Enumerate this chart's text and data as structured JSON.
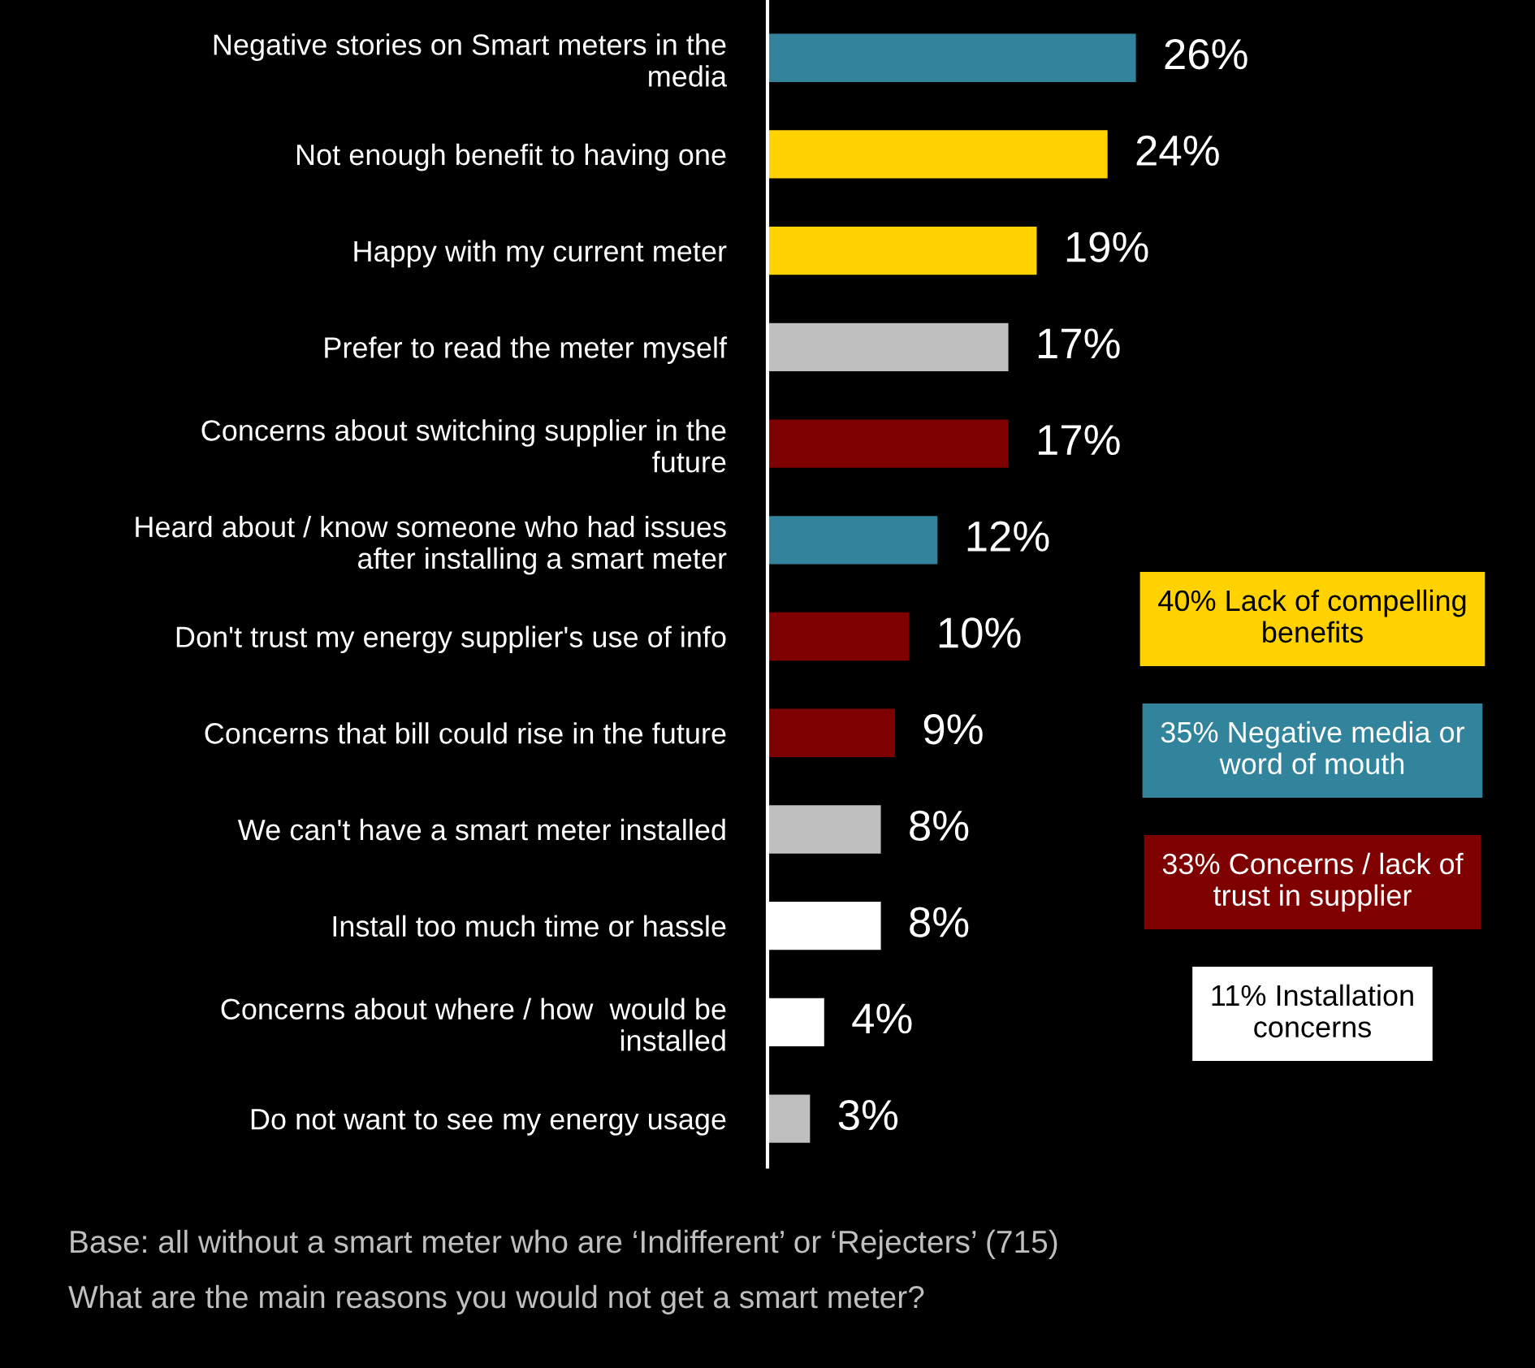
{
  "chart_data": {
    "type": "bar",
    "orientation": "horizontal",
    "legend": "right",
    "grid": false,
    "categories": [
      "Negative stories on Smart meters in the media",
      "Not enough benefit to having one",
      "Happy with my current meter",
      "Prefer to read the meter myself",
      "Concerns about switching supplier in the future",
      "Heard about / know someone who had issues after installing a smart meter",
      "Don't trust my energy supplier's use of info",
      "Concerns that bill could rise in the future",
      "We can't have a smart meter installed",
      "Install too much time or hassle",
      "Concerns about where / how  would be installed",
      "Do not want to see my energy usage"
    ],
    "series": [
      {
        "name": "40% Lack of compelling benefits",
        "color": "#ffd200",
        "values": [
          null,
          24,
          19,
          null,
          null,
          null,
          null,
          null,
          null,
          null,
          null,
          null
        ],
        "value_labels": [
          null,
          "24%",
          "19%",
          null,
          null,
          null,
          null,
          null,
          null,
          null,
          null,
          null
        ]
      },
      {
        "name": "35% Negative media or word of mouth",
        "color": "#31849b",
        "values": [
          26,
          null,
          null,
          null,
          null,
          12,
          null,
          null,
          null,
          null,
          null,
          null
        ],
        "value_labels": [
          "26%",
          null,
          null,
          null,
          null,
          "12%",
          null,
          null,
          null,
          null,
          null,
          null
        ]
      },
      {
        "name": "33% Concerns / lack of trust in supplier",
        "color": "#7f0000",
        "values": [
          null,
          null,
          null,
          null,
          17,
          null,
          10,
          9,
          null,
          null,
          null,
          null
        ],
        "value_labels": [
          null,
          null,
          null,
          null,
          "17%",
          null,
          "10%",
          "9%",
          null,
          null,
          null,
          null
        ]
      },
      {
        "name": "11% Installation concerns",
        "color": "#ffffff",
        "values": [
          null,
          null,
          null,
          null,
          null,
          null,
          null,
          null,
          null,
          8,
          4,
          null
        ],
        "value_labels": [
          null,
          null,
          null,
          null,
          null,
          null,
          null,
          null,
          null,
          "8%",
          "4%",
          null
        ]
      },
      {
        "color": "#bfbfbf",
        "values": [
          null,
          null,
          null,
          17,
          null,
          null,
          null,
          null,
          8,
          null,
          null,
          3
        ],
        "value_labels": [
          null,
          null,
          null,
          "17%",
          null,
          null,
          null,
          null,
          "8%",
          null,
          null,
          "3%"
        ]
      }
    ],
    "annotations": [
      "Base: all without a smart meter who are ‘Indifferent’ or ‘Rejecters’ (715)",
      "What are the main reasons you would not get a smart meter?"
    ]
  }
}
